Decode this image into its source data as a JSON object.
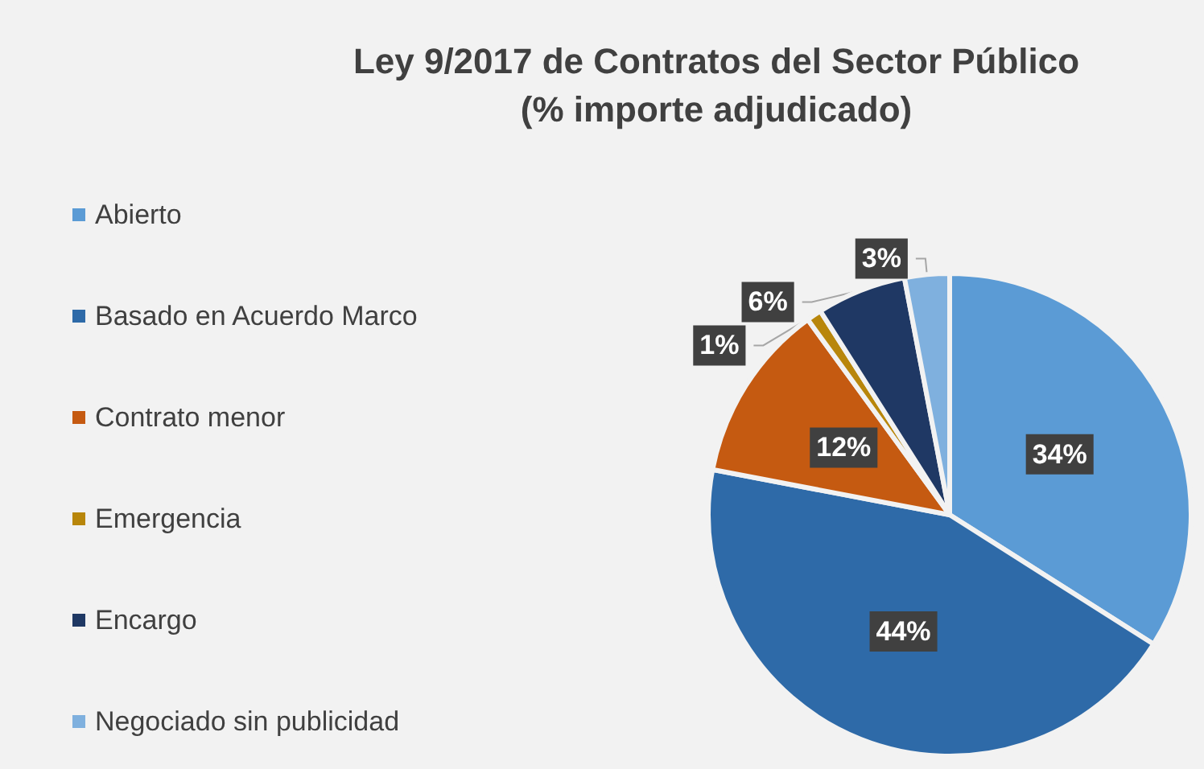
{
  "chart_data": {
    "type": "pie",
    "title": "Ley 9/2017 de Contratos del Sector Público",
    "subtitle": "(% importe adjudicado)",
    "categories": [
      "Abierto",
      "Basado en Acuerdo Marco",
      "Contrato menor",
      "Emergencia",
      "Encargo",
      "Negociado sin publicidad"
    ],
    "values": [
      34,
      44,
      12,
      1,
      6,
      3
    ],
    "colors": [
      "#5b9bd5",
      "#2e6aa8",
      "#c55a11",
      "#b8860b",
      "#1f3864",
      "#7fb0de"
    ],
    "value_labels": [
      "34%",
      "44%",
      "12%",
      "1%",
      "6%",
      "3%"
    ],
    "legend": "left"
  }
}
